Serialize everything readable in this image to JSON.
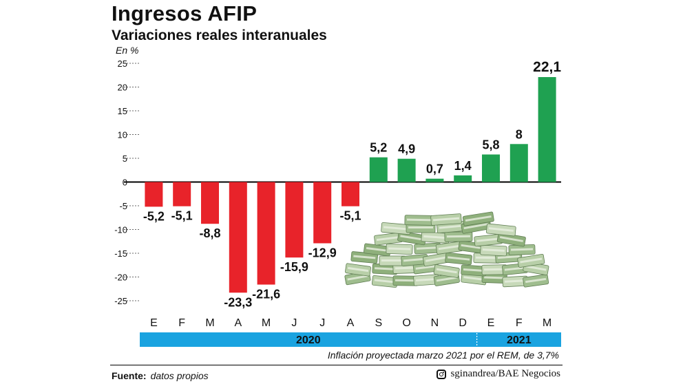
{
  "title": "Ingresos AFIP",
  "subtitle": "Variaciones reales interanuales",
  "unit": "En %",
  "note": "Inflación proyectada marzo 2021 por el REM, de 3,7%",
  "footer": {
    "source_label": "Fuente:",
    "source_text": "datos propios",
    "credit": "sginandrea/BAE Negocios",
    "credit_icon": "instagram-icon"
  },
  "colors": {
    "negative": "#e8232a",
    "positive": "#1fa151",
    "year_band": "#1aa3e0",
    "grid": "#333333"
  },
  "chart_data": {
    "type": "bar",
    "categories": [
      "E",
      "F",
      "M",
      "A",
      "M",
      "J",
      "J",
      "A",
      "S",
      "O",
      "N",
      "D",
      "E",
      "F",
      "M"
    ],
    "values": [
      -5.2,
      -5.1,
      -8.8,
      -23.3,
      -21.6,
      -15.9,
      -12.9,
      -5.1,
      5.2,
      4.9,
      0.7,
      1.4,
      5.8,
      8,
      22.1
    ],
    "labels": [
      "-5,2",
      "-5,1",
      "-8,8",
      "-23,3",
      "-21,6",
      "-15,9",
      "-12,9",
      "-5,1",
      "5,2",
      "4,9",
      "0,7",
      "1,4",
      "5,8",
      "8",
      "22,1"
    ],
    "yticks": [
      25,
      20,
      15,
      10,
      5,
      0,
      -5,
      -10,
      -15,
      -20,
      -25
    ],
    "ylim": [
      -25,
      25
    ],
    "groups": [
      {
        "label": "2020",
        "start": 0,
        "end": 11
      },
      {
        "label": "2021",
        "start": 12,
        "end": 14
      }
    ],
    "highlight_last_label": true
  }
}
